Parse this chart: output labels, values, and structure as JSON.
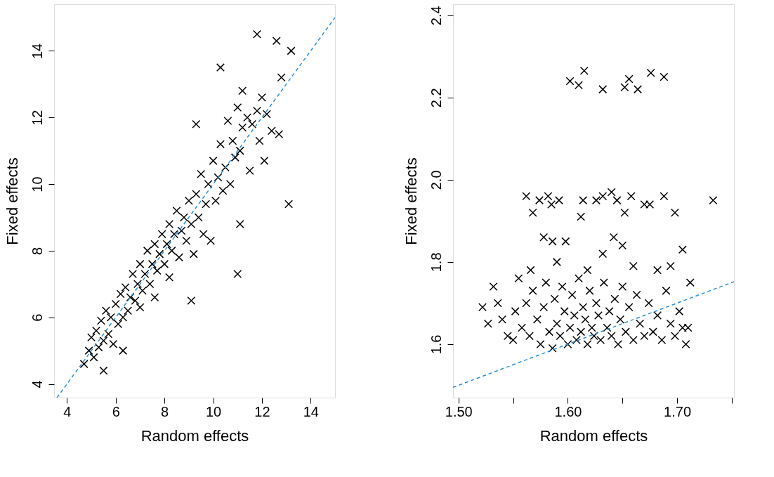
{
  "chart_data": [
    {
      "type": "scatter",
      "xlabel": "Random effects",
      "ylabel": "Fixed effects",
      "xlim": [
        3.47,
        15.0
      ],
      "ylim": [
        3.59,
        15.4
      ],
      "xticks": [
        4,
        6,
        8,
        10,
        12,
        14
      ],
      "yticks": [
        4,
        6,
        8,
        10,
        12,
        14
      ],
      "grid": false,
      "marker": "cross",
      "series": [
        {
          "type": "scatter",
          "color": "#000000",
          "x": [
            4.7,
            4.9,
            5.0,
            5.1,
            5.2,
            5.3,
            5.4,
            5.5,
            5.6,
            5.7,
            5.8,
            5.9,
            6.0,
            6.1,
            6.2,
            6.3,
            6.3,
            6.4,
            6.5,
            6.6,
            6.7,
            6.8,
            6.9,
            7.0,
            7.0,
            7.1,
            7.2,
            7.3,
            7.4,
            7.5,
            7.6,
            7.6,
            7.7,
            7.8,
            7.9,
            8.0,
            8.1,
            8.2,
            8.2,
            8.3,
            8.4,
            8.5,
            8.6,
            8.7,
            8.8,
            8.9,
            9.0,
            9.1,
            9.2,
            9.3,
            9.4,
            9.5,
            9.6,
            9.7,
            9.8,
            9.9,
            10.0,
            10.1,
            10.2,
            10.3,
            10.4,
            10.5,
            10.6,
            10.7,
            10.8,
            10.9,
            11.0,
            11.1,
            11.2,
            11.2,
            11.4,
            11.5,
            11.6,
            11.8,
            11.9,
            12.0,
            12.2,
            12.4,
            12.7,
            10.3,
            11.8,
            12.6,
            13.2,
            12.8,
            9.3,
            13.1,
            11.0,
            9.1,
            11.1,
            12.1,
            5.5
          ],
          "values": [
            4.6,
            5.0,
            5.4,
            4.8,
            5.6,
            5.1,
            5.9,
            5.3,
            6.2,
            5.5,
            6.0,
            5.2,
            6.4,
            5.8,
            6.7,
            6.0,
            5.0,
            6.9,
            6.2,
            6.6,
            7.3,
            6.5,
            7.0,
            7.6,
            6.3,
            6.8,
            7.3,
            8.0,
            7.0,
            7.6,
            6.6,
            8.2,
            7.4,
            7.9,
            8.5,
            7.6,
            8.2,
            7.2,
            8.8,
            8.0,
            8.5,
            9.2,
            7.8,
            8.6,
            9.0,
            8.3,
            9.5,
            8.8,
            7.9,
            9.7,
            9.0,
            10.3,
            8.5,
            9.4,
            10.0,
            8.3,
            10.7,
            9.5,
            10.2,
            11.2,
            9.8,
            10.5,
            11.9,
            10.0,
            11.3,
            10.8,
            12.3,
            11.0,
            11.7,
            12.8,
            12.0,
            10.4,
            11.8,
            12.2,
            11.3,
            12.6,
            12.1,
            11.6,
            11.5,
            13.5,
            14.5,
            14.3,
            14.0,
            13.2,
            11.8,
            9.4,
            7.3,
            6.5,
            8.8,
            10.7,
            4.4
          ]
        },
        {
          "type": "line",
          "color": "#2b8fd9",
          "line_style": "dashed",
          "x": [
            3.59,
            15.0
          ],
          "values": [
            3.59,
            15.0
          ],
          "marker": "none"
        }
      ]
    },
    {
      "type": "scatter",
      "xlabel": "Random effects",
      "ylabel": "Fixed effects",
      "xlim": [
        1.495,
        1.752
      ],
      "ylim": [
        1.47,
        2.427
      ],
      "xticks": [
        {
          "value": 1.5,
          "label": "1.50"
        },
        {
          "value": 1.55,
          "label": null
        },
        {
          "value": 1.6,
          "label": "1.60"
        },
        {
          "value": 1.65,
          "label": null
        },
        {
          "value": 1.7,
          "label": "1.70"
        },
        {
          "value": 1.75,
          "label": null
        }
      ],
      "yticks": [
        {
          "value": 1.6,
          "label": "1.6"
        },
        {
          "value": 1.8,
          "label": "1.8"
        },
        {
          "value": 2.0,
          "label": "2.0"
        },
        {
          "value": 2.2,
          "label": "2.2"
        },
        {
          "value": 2.4,
          "label": "2.4"
        }
      ],
      "grid": false,
      "marker": "cross",
      "series": [
        {
          "type": "scatter",
          "color": "#000000",
          "x": [
            1.602,
            1.61,
            1.615,
            1.632,
            1.652,
            1.656,
            1.664,
            1.676,
            1.688,
            1.562,
            1.568,
            1.574,
            1.582,
            1.585,
            1.592,
            1.614,
            1.626,
            1.632,
            1.64,
            1.645,
            1.658,
            1.67,
            1.675,
            1.688,
            1.698,
            1.733,
            1.612,
            1.652,
            1.578,
            1.586,
            1.598,
            1.632,
            1.65,
            1.642,
            1.705,
            1.566,
            1.59,
            1.618,
            1.66,
            1.682,
            1.694,
            1.522,
            1.527,
            1.532,
            1.536,
            1.54,
            1.545,
            1.55,
            1.552,
            1.555,
            1.558,
            1.562,
            1.565,
            1.568,
            1.572,
            1.575,
            1.578,
            1.58,
            1.583,
            1.586,
            1.588,
            1.59,
            1.593,
            1.595,
            1.597,
            1.6,
            1.602,
            1.604,
            1.606,
            1.608,
            1.61,
            1.612,
            1.614,
            1.616,
            1.618,
            1.62,
            1.622,
            1.624,
            1.626,
            1.628,
            1.63,
            1.633,
            1.636,
            1.638,
            1.64,
            1.643,
            1.646,
            1.648,
            1.65,
            1.653,
            1.656,
            1.66,
            1.663,
            1.666,
            1.67,
            1.674,
            1.678,
            1.682,
            1.686,
            1.69,
            1.694,
            1.698,
            1.702,
            1.705,
            1.708,
            1.712,
            1.71
          ],
          "values": [
            2.24,
            2.23,
            2.265,
            2.22,
            2.225,
            2.245,
            2.22,
            2.26,
            2.25,
            1.96,
            1.92,
            1.95,
            1.96,
            1.94,
            1.95,
            1.95,
            1.95,
            1.96,
            1.97,
            1.95,
            1.96,
            1.94,
            1.94,
            1.96,
            1.92,
            1.95,
            1.91,
            1.92,
            1.86,
            1.85,
            1.85,
            1.82,
            1.84,
            1.86,
            1.83,
            1.78,
            1.8,
            1.78,
            1.79,
            1.78,
            1.79,
            1.69,
            1.65,
            1.74,
            1.7,
            1.66,
            1.62,
            1.61,
            1.68,
            1.76,
            1.64,
            1.7,
            1.62,
            1.73,
            1.66,
            1.6,
            1.69,
            1.75,
            1.63,
            1.59,
            1.71,
            1.65,
            1.62,
            1.74,
            1.68,
            1.6,
            1.64,
            1.72,
            1.67,
            1.61,
            1.76,
            1.63,
            1.69,
            1.66,
            1.6,
            1.73,
            1.64,
            1.62,
            1.7,
            1.67,
            1.61,
            1.75,
            1.64,
            1.68,
            1.62,
            1.71,
            1.6,
            1.66,
            1.74,
            1.63,
            1.69,
            1.61,
            1.72,
            1.65,
            1.62,
            1.7,
            1.63,
            1.67,
            1.61,
            1.73,
            1.65,
            1.62,
            1.68,
            1.64,
            1.6,
            1.75,
            1.64
          ]
        },
        {
          "type": "line",
          "color": "#2b8fd9",
          "line_style": "dashed",
          "x": [
            1.495,
            1.752
          ],
          "values": [
            1.495,
            1.752
          ],
          "marker": "none"
        }
      ]
    }
  ]
}
